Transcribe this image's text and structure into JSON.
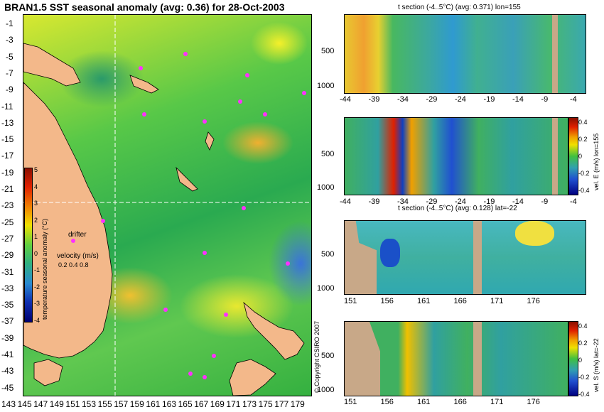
{
  "title": "BRAN1.5 SST seasonal anomaly (avg: 0.36) for 28-Oct-2003",
  "map": {
    "lat_labels": [
      "-1",
      "-3",
      "-5",
      "-7",
      "-9",
      "-11",
      "-13",
      "-15",
      "-17",
      "-19",
      "-21",
      "-23",
      "-25",
      "-27",
      "-29",
      "-31",
      "-33",
      "-35",
      "-37",
      "-39",
      "-41",
      "-43",
      "-45"
    ],
    "lon_labels": [
      "143",
      "145",
      "147",
      "149",
      "151",
      "153",
      "155",
      "157",
      "159",
      "161",
      "163",
      "165",
      "167",
      "169",
      "171",
      "173",
      "175",
      "177",
      "179"
    ],
    "colorbar_ticks": [
      "5",
      "4",
      "3",
      "2",
      "1",
      "0",
      "-1",
      "-2",
      "-3",
      "-4"
    ],
    "colorbar_label": "temperature seasonal anomaly (°C)",
    "drifter_label": "drifter",
    "velocity_label": "velocity (m/s)",
    "velocity_scale": "0.2 0.4 0.8",
    "section_lon": 155,
    "section_lat": -22
  },
  "panels": [
    {
      "title": "t section (-4..5°C) (avg: 0.371) lon=155",
      "x_ticks": [
        "-44",
        "-39",
        "-34",
        "-29",
        "-24",
        "-19",
        "-14",
        "-9",
        "-4"
      ],
      "y_ticks": [
        "500",
        "1000"
      ]
    },
    {
      "title": "",
      "x_ticks": [
        "-44",
        "-39",
        "-34",
        "-29",
        "-24",
        "-19",
        "-14",
        "-9",
        "-4"
      ],
      "y_ticks": [
        "500",
        "1000"
      ],
      "colorbar_label": "vel. E (m/s) lon=155",
      "colorbar_ticks": [
        "0.4",
        "0.2",
        "0",
        "-0.2",
        "-0.4"
      ]
    },
    {
      "title": "t section (-4..5°C) (avg: 0.128) lat=-22",
      "x_ticks": [
        "151",
        "156",
        "161",
        "166",
        "171",
        "176"
      ],
      "y_ticks": [
        "500",
        "1000"
      ]
    },
    {
      "title": "",
      "x_ticks": [
        "151",
        "156",
        "161",
        "166",
        "171",
        "176"
      ],
      "y_ticks": [
        "500",
        "1000"
      ],
      "colorbar_label": "vel. S (m/s) lat=-22",
      "colorbar_ticks": [
        "0.4",
        "0.2",
        "0",
        "-0.2",
        "-0.4"
      ]
    }
  ],
  "copyright": "© Copyright CSIRO 2007",
  "colors": {
    "land": "#f3b88a",
    "section_land": "#c8a888",
    "drifter": "#ff30ff",
    "crosshair": "#ffffff"
  }
}
